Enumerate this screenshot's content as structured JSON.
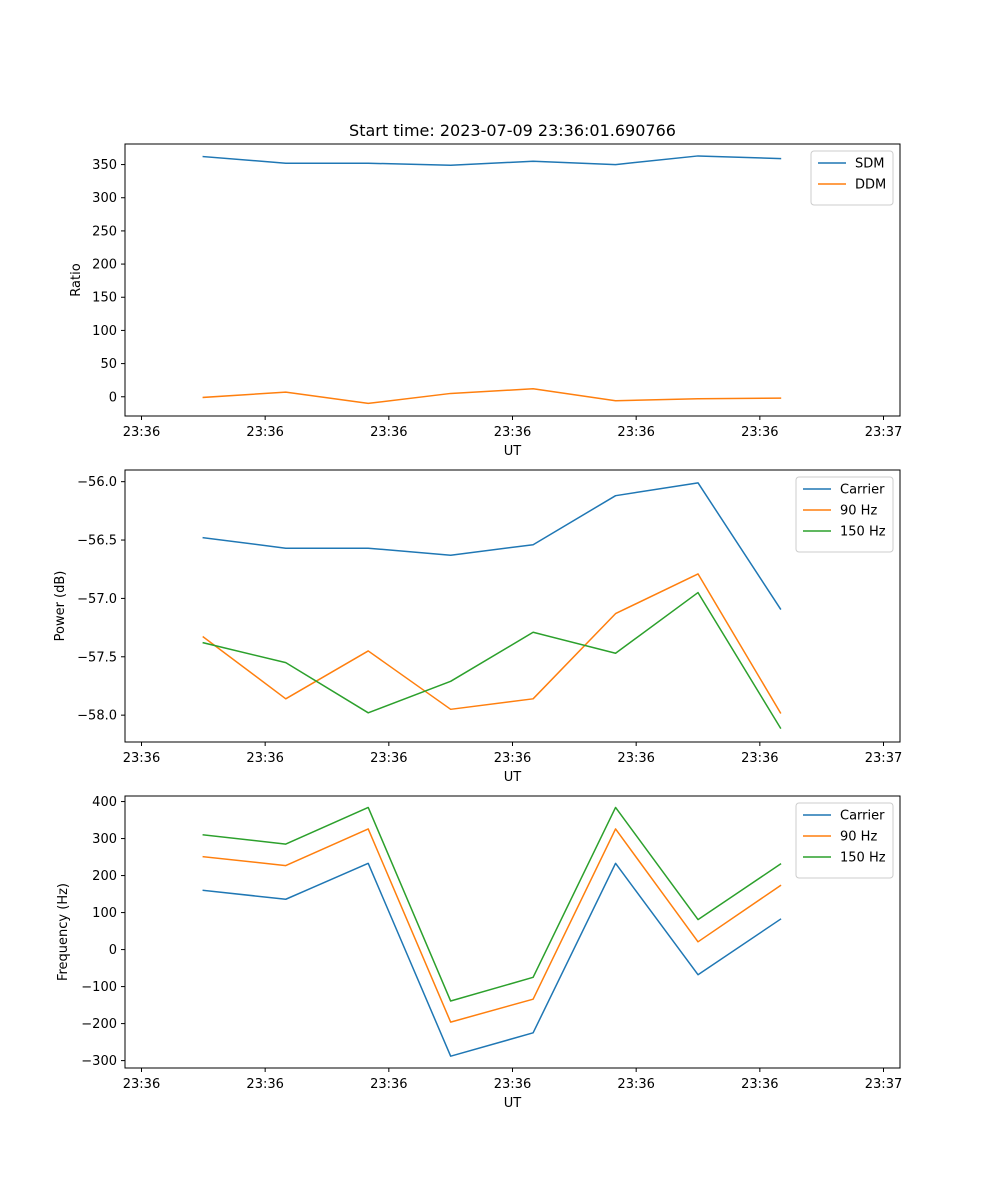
{
  "figure": {
    "title": "Start time: 2023-07-09 23:36:01.690766"
  },
  "colors": {
    "series1": "#1f77b4",
    "series2": "#ff7f0e",
    "series3": "#2ca02c"
  },
  "chart_data": [
    {
      "type": "line",
      "title": "Start time: 2023-07-09 23:36:01.690766",
      "xlabel": "UT",
      "ylabel": "Ratio",
      "xlim": [
        -0.2,
        9.2
      ],
      "ylim": [
        -29,
        381
      ],
      "x": [
        0.75,
        1.75,
        2.75,
        3.75,
        4.75,
        5.75,
        6.75,
        7.75
      ],
      "x_ticks": [
        0,
        1.5,
        3,
        4.5,
        6,
        7.5,
        9
      ],
      "x_tick_labels": [
        "23:36",
        "23:36",
        "23:36",
        "23:36",
        "23:36",
        "23:36",
        "23:37"
      ],
      "y_ticks": [
        0,
        50,
        100,
        150,
        200,
        250,
        300,
        350
      ],
      "y_tick_labels": [
        "0",
        "50",
        "100",
        "150",
        "200",
        "250",
        "300",
        "350"
      ],
      "legend_position": "top-right",
      "series": [
        {
          "name": "SDM",
          "color": "#1f77b4",
          "values": [
            362,
            352,
            352,
            349,
            355,
            350,
            363,
            359
          ]
        },
        {
          "name": "DDM",
          "color": "#ff7f0e",
          "values": [
            -1,
            7,
            -10,
            5,
            12,
            -6,
            -3,
            -2
          ]
        }
      ]
    },
    {
      "type": "line",
      "xlabel": "UT",
      "ylabel": "Power (dB)",
      "xlim": [
        -0.2,
        9.2
      ],
      "ylim": [
        -58.23,
        -55.9
      ],
      "x": [
        0.75,
        1.75,
        2.75,
        3.75,
        4.75,
        5.75,
        6.75,
        7.75
      ],
      "x_ticks": [
        0,
        1.5,
        3,
        4.5,
        6,
        7.5,
        9
      ],
      "x_tick_labels": [
        "23:36",
        "23:36",
        "23:36",
        "23:36",
        "23:36",
        "23:36",
        "23:37"
      ],
      "y_ticks": [
        -58.0,
        -57.5,
        -57.0,
        -56.5,
        -56.0
      ],
      "y_tick_labels": [
        "−58.0",
        "−57.5",
        "−57.0",
        "−56.5",
        "−56.0"
      ],
      "legend_position": "top-right",
      "series": [
        {
          "name": "Carrier",
          "color": "#1f77b4",
          "values": [
            -56.48,
            -56.57,
            -56.57,
            -56.63,
            -56.54,
            -56.12,
            -56.01,
            -57.09
          ]
        },
        {
          "name": "90 Hz",
          "color": "#ff7f0e",
          "values": [
            -57.33,
            -57.86,
            -57.45,
            -57.95,
            -57.86,
            -57.13,
            -56.79,
            -57.98
          ]
        },
        {
          "name": "150 Hz",
          "color": "#2ca02c",
          "values": [
            -57.38,
            -57.55,
            -57.98,
            -57.71,
            -57.29,
            -57.47,
            -56.95,
            -58.11
          ]
        }
      ]
    },
    {
      "type": "line",
      "xlabel": "UT",
      "ylabel": "Frequency (Hz)",
      "xlim": [
        -0.2,
        9.2
      ],
      "ylim": [
        -320,
        415
      ],
      "x": [
        0.75,
        1.75,
        2.75,
        3.75,
        4.75,
        5.75,
        6.75,
        7.75
      ],
      "x_ticks": [
        0,
        1.5,
        3,
        4.5,
        6,
        7.5,
        9
      ],
      "x_tick_labels": [
        "23:36",
        "23:36",
        "23:36",
        "23:36",
        "23:36",
        "23:36",
        "23:37"
      ],
      "y_ticks": [
        -300,
        -200,
        -100,
        0,
        100,
        200,
        300,
        400
      ],
      "y_tick_labels": [
        "−300",
        "−200",
        "−100",
        "0",
        "100",
        "200",
        "300",
        "400"
      ],
      "legend_position": "top-right",
      "series": [
        {
          "name": "Carrier",
          "color": "#1f77b4",
          "values": [
            160,
            136,
            233,
            -288,
            -225,
            233,
            -68,
            82
          ]
        },
        {
          "name": "90 Hz",
          "color": "#ff7f0e",
          "values": [
            251,
            227,
            326,
            -196,
            -134,
            326,
            21,
            173
          ]
        },
        {
          "name": "150 Hz",
          "color": "#2ca02c",
          "values": [
            310,
            285,
            384,
            -139,
            -75,
            384,
            81,
            231
          ]
        }
      ]
    }
  ]
}
